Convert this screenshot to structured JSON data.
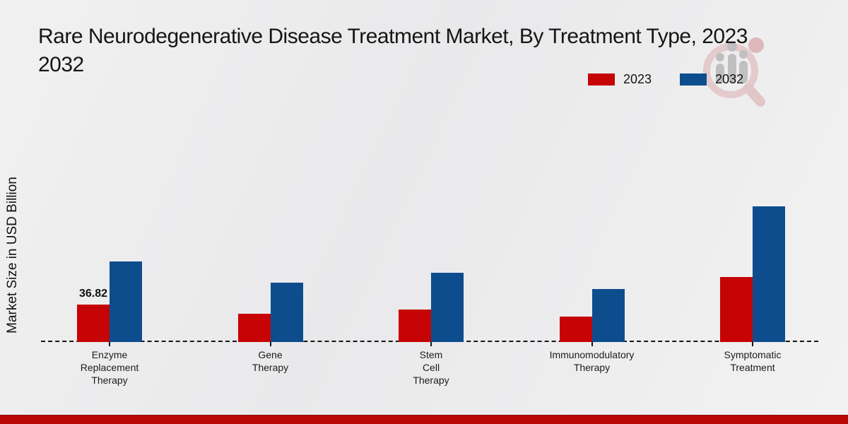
{
  "title": {
    "line1": "Rare Neurodegenerative Disease Treatment Market, By Treatment Type, 2023",
    "line2": "2032"
  },
  "legend": {
    "items": [
      {
        "label": "2023",
        "color": "#c60405"
      },
      {
        "label": "2032",
        "color": "#0d4d8e"
      }
    ]
  },
  "y_axis": {
    "label": "Market Size in USD Billion"
  },
  "footer": {
    "bar_color": "#b90606"
  },
  "chart_data": {
    "type": "bar",
    "title": "Rare Neurodegenerative Disease Treatment Market, By Treatment Type, 2023 2032",
    "categories": [
      "Enzyme Replacement Therapy",
      "Gene Therapy",
      "Stem Cell Therapy",
      "Immunomodulatory Therapy",
      "Symptomatic Treatment"
    ],
    "category_tick_labels": [
      "Enzyme\nReplacement\nTherapy",
      "Gene\nTherapy",
      "Stem\nCell\nTherapy",
      "Immunomodulatory\nTherapy",
      "Symptomatic\nTreatment"
    ],
    "series": [
      {
        "name": "2023",
        "color": "#c60405",
        "values": [
          36.82,
          27.9,
          31.9,
          24.9,
          64.1
        ],
        "value_labels": [
          "36.82",
          "",
          "",
          "",
          ""
        ]
      },
      {
        "name": "2032",
        "color": "#0d4d8e",
        "values": [
          79.4,
          58.6,
          68.0,
          52.3,
          133.1
        ],
        "value_labels": [
          "",
          "",
          "",
          "",
          ""
        ]
      }
    ],
    "xlabel": "",
    "ylabel": "Market Size in USD Billion",
    "ylim": [
      0,
      140
    ],
    "grid": false,
    "legend_position": "top-right",
    "baseline_style": "dashed",
    "axis_ticks": true
  }
}
